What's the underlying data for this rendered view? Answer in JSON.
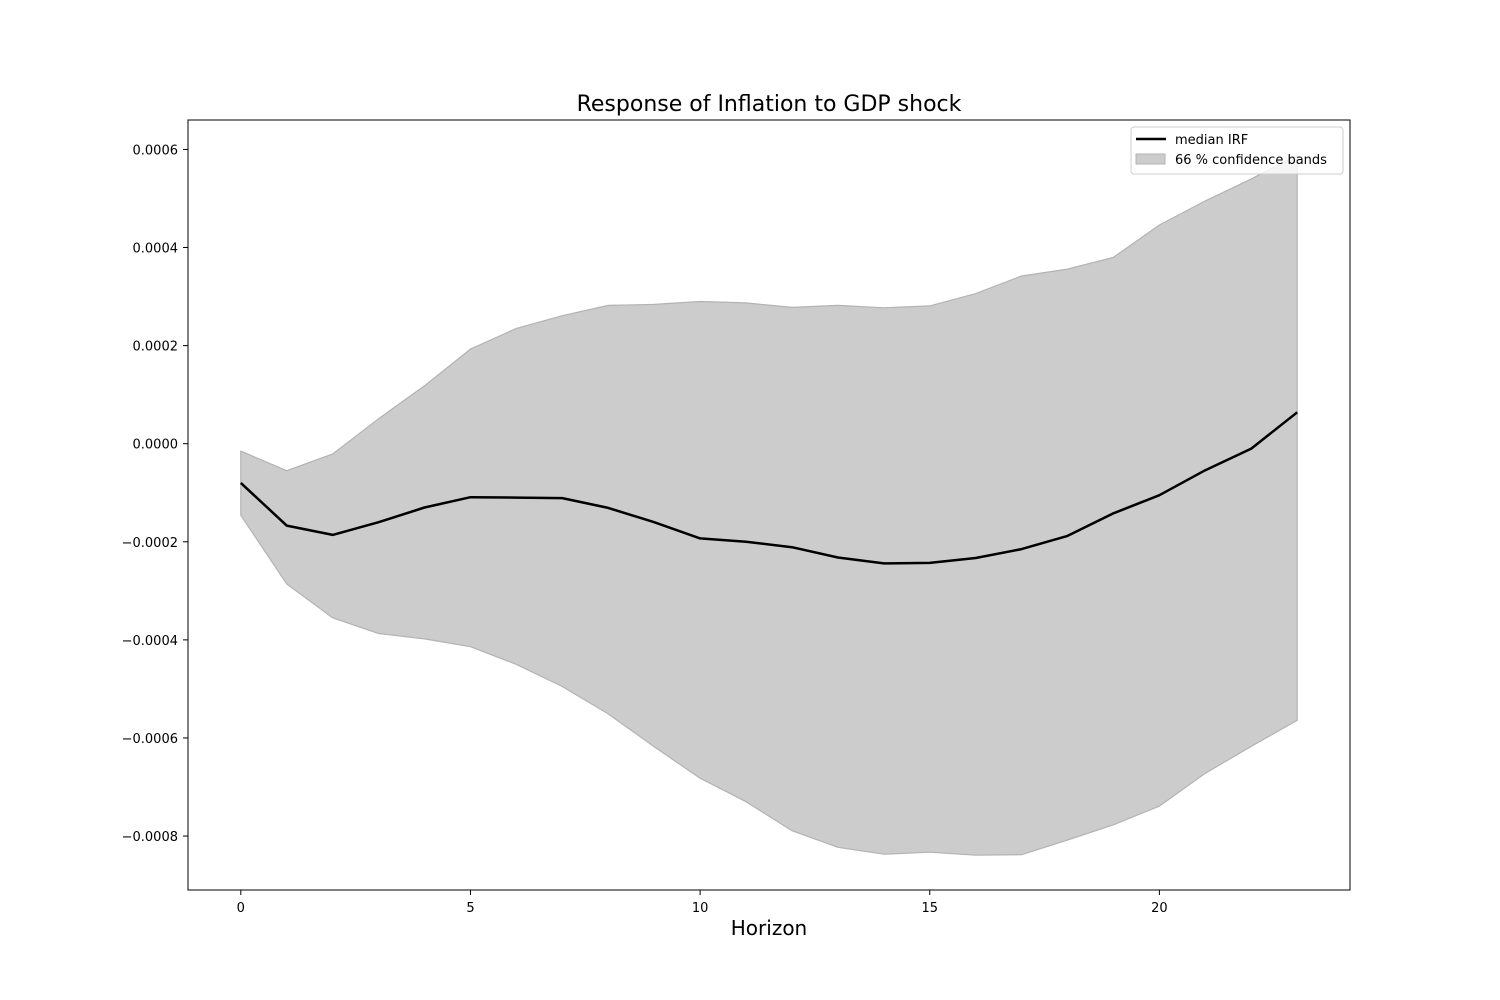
{
  "chart_data": {
    "type": "area",
    "title": "Response of Inflation to GDP shock",
    "xlabel": "Horizon",
    "ylabel": "",
    "x": [
      0,
      1,
      2,
      3,
      4,
      5,
      6,
      7,
      8,
      9,
      10,
      11,
      12,
      13,
      14,
      15,
      16,
      17,
      18,
      19,
      20,
      21,
      22,
      23
    ],
    "xlim": [
      -1.15,
      24.15
    ],
    "ylim": [
      -0.00091,
      0.00066
    ],
    "x_ticks": [
      0,
      5,
      10,
      15,
      20
    ],
    "x_tick_labels": [
      "0",
      "5",
      "10",
      "15",
      "20"
    ],
    "y_ticks": [
      -0.0008,
      -0.0006,
      -0.0004,
      -0.0002,
      0.0,
      0.0002,
      0.0004,
      0.0006
    ],
    "y_tick_labels": [
      "−0.0008",
      "−0.0006",
      "−0.0004",
      "−0.0002",
      "0.0000",
      "0.0002",
      "0.0004",
      "0.0006"
    ],
    "grid": false,
    "legend_position": "top-right",
    "series": [
      {
        "name": "median IRF",
        "kind": "line",
        "color": "#000000",
        "values": [
          -8e-05,
          -0.000167,
          -0.000186,
          -0.00016,
          -0.00013,
          -0.000109,
          -0.00011,
          -0.000111,
          -0.000131,
          -0.00016,
          -0.000193,
          -0.0002,
          -0.000211,
          -0.000232,
          -0.000244,
          -0.000243,
          -0.000233,
          -0.000215,
          -0.000188,
          -0.000142,
          -0.000105,
          -5.4e-05,
          -1e-05,
          6.4e-05
        ]
      },
      {
        "name": "66 % confidence bands",
        "kind": "band",
        "color": "#cccccc",
        "edge_color": "#b3b3b3",
        "lower": [
          -0.000146,
          -0.000286,
          -0.000355,
          -0.000387,
          -0.000398,
          -0.000414,
          -0.00045,
          -0.000495,
          -0.000551,
          -0.000618,
          -0.000682,
          -0.00073,
          -0.000789,
          -0.000823,
          -0.000837,
          -0.000833,
          -0.000839,
          -0.000838,
          -0.000808,
          -0.000777,
          -0.000739,
          -0.000672,
          -0.000617,
          -0.000564
        ],
        "upper": [
          -1.5e-05,
          -5.5e-05,
          -2.1e-05,
          5.1e-05,
          0.000118,
          0.000193,
          0.000235,
          0.000261,
          0.000282,
          0.000284,
          0.00029,
          0.000287,
          0.000278,
          0.000282,
          0.000277,
          0.000281,
          0.000306,
          0.000342,
          0.000356,
          0.00038,
          0.000446,
          0.000495,
          0.00054,
          0.000588
        ]
      }
    ]
  }
}
